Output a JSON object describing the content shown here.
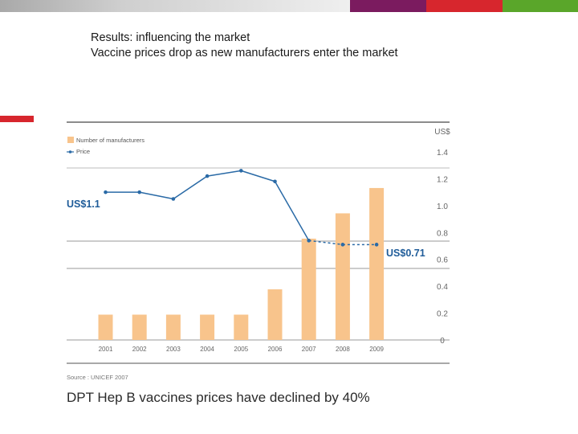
{
  "slide": {
    "title_line1": "Results: influencing the market",
    "title_line2": "Vaccine prices drop as new manufacturers enter the market",
    "caption": "DPT Hep B vaccines prices have declined by 40%"
  },
  "colors": {
    "strip_purple": "#7b1b5f",
    "strip_red": "#d7262d",
    "strip_green": "#5aa62a",
    "bar": "#f8c48c",
    "line": "#2a6aa6",
    "highlight_text": "#1f5c99"
  },
  "chart_data": {
    "type": "bar",
    "categories": [
      "2001",
      "2002",
      "2003",
      "2004",
      "2005",
      "2006",
      "2007",
      "2008",
      "2009"
    ],
    "series": [
      {
        "name": "Number of manufacturers",
        "type": "bar",
        "values": [
          1,
          1,
          1,
          1,
          1,
          2,
          4,
          5,
          6
        ]
      },
      {
        "name": "Price",
        "type": "line",
        "axis": "right",
        "values": [
          1.1,
          1.1,
          1.05,
          1.22,
          1.26,
          1.18,
          0.74,
          0.71,
          0.71
        ],
        "dashed_from_index": 6
      }
    ],
    "right_axis": {
      "label": "US$",
      "ticks": [
        "1.4",
        "1.2",
        "1.0",
        "0.8",
        "0.6",
        "0.4",
        "0.2",
        "0"
      ],
      "ylim": [
        0,
        1.4
      ]
    },
    "bar_scale_max": 8.6,
    "annotations": {
      "start": "US$1.1",
      "end": "US$0.71"
    },
    "source": "Source : UNICEF 2007",
    "legend_position": "top-left"
  }
}
